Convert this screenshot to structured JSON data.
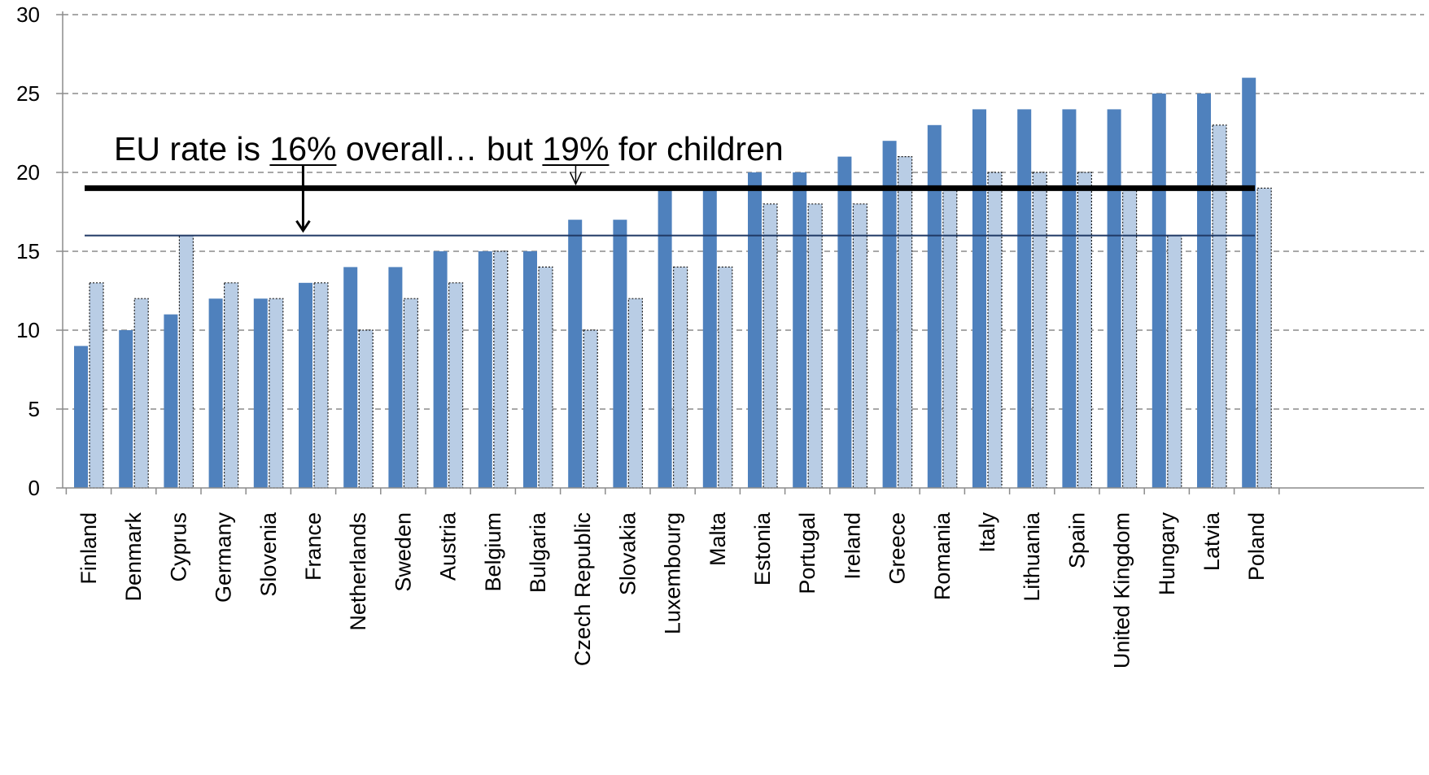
{
  "chart_data": {
    "type": "bar",
    "categories": [
      "Finland",
      "Denmark",
      "Cyprus",
      "Germany",
      "Slovenia",
      "France",
      "Netherlands",
      "Sweden",
      "Austria",
      "Belgium",
      "Bulgaria",
      "Czech Republic",
      "Slovakia",
      "Luxembourg",
      "Malta",
      "Estonia",
      "Portugal",
      "Ireland",
      "Greece",
      "Romania",
      "Italy",
      "Lithuania",
      "Spain",
      "United Kingdom",
      "Hungary",
      "Latvia",
      "Poland"
    ],
    "series": [
      {
        "values": [
          9,
          10,
          11,
          12,
          12,
          13,
          14,
          14,
          15,
          15,
          15,
          17,
          17,
          19,
          19,
          20,
          20,
          21,
          22,
          23,
          24,
          24,
          24,
          24,
          25,
          25,
          26
        ],
        "color": "#4f81bd"
      },
      {
        "values": [
          13,
          12,
          16,
          13,
          12,
          13,
          10,
          12,
          13,
          15,
          14,
          10,
          12,
          14,
          14,
          18,
          18,
          18,
          21,
          19,
          20,
          20,
          20,
          19,
          16,
          23,
          19
        ],
        "color": "#b9cde5"
      }
    ],
    "ylim": [
      0,
      30
    ],
    "yticks": [
      0,
      5,
      10,
      15,
      20,
      25,
      30
    ],
    "grid": true,
    "reference_lines": [
      {
        "value": 19,
        "color": "#000000"
      },
      {
        "value": 16,
        "color": "#1f3864"
      }
    ],
    "annotation": {
      "prefix": "EU rate is ",
      "overall_value": "16%",
      "middle": " overall… but ",
      "children_value": "19%",
      "suffix": " for children"
    }
  }
}
